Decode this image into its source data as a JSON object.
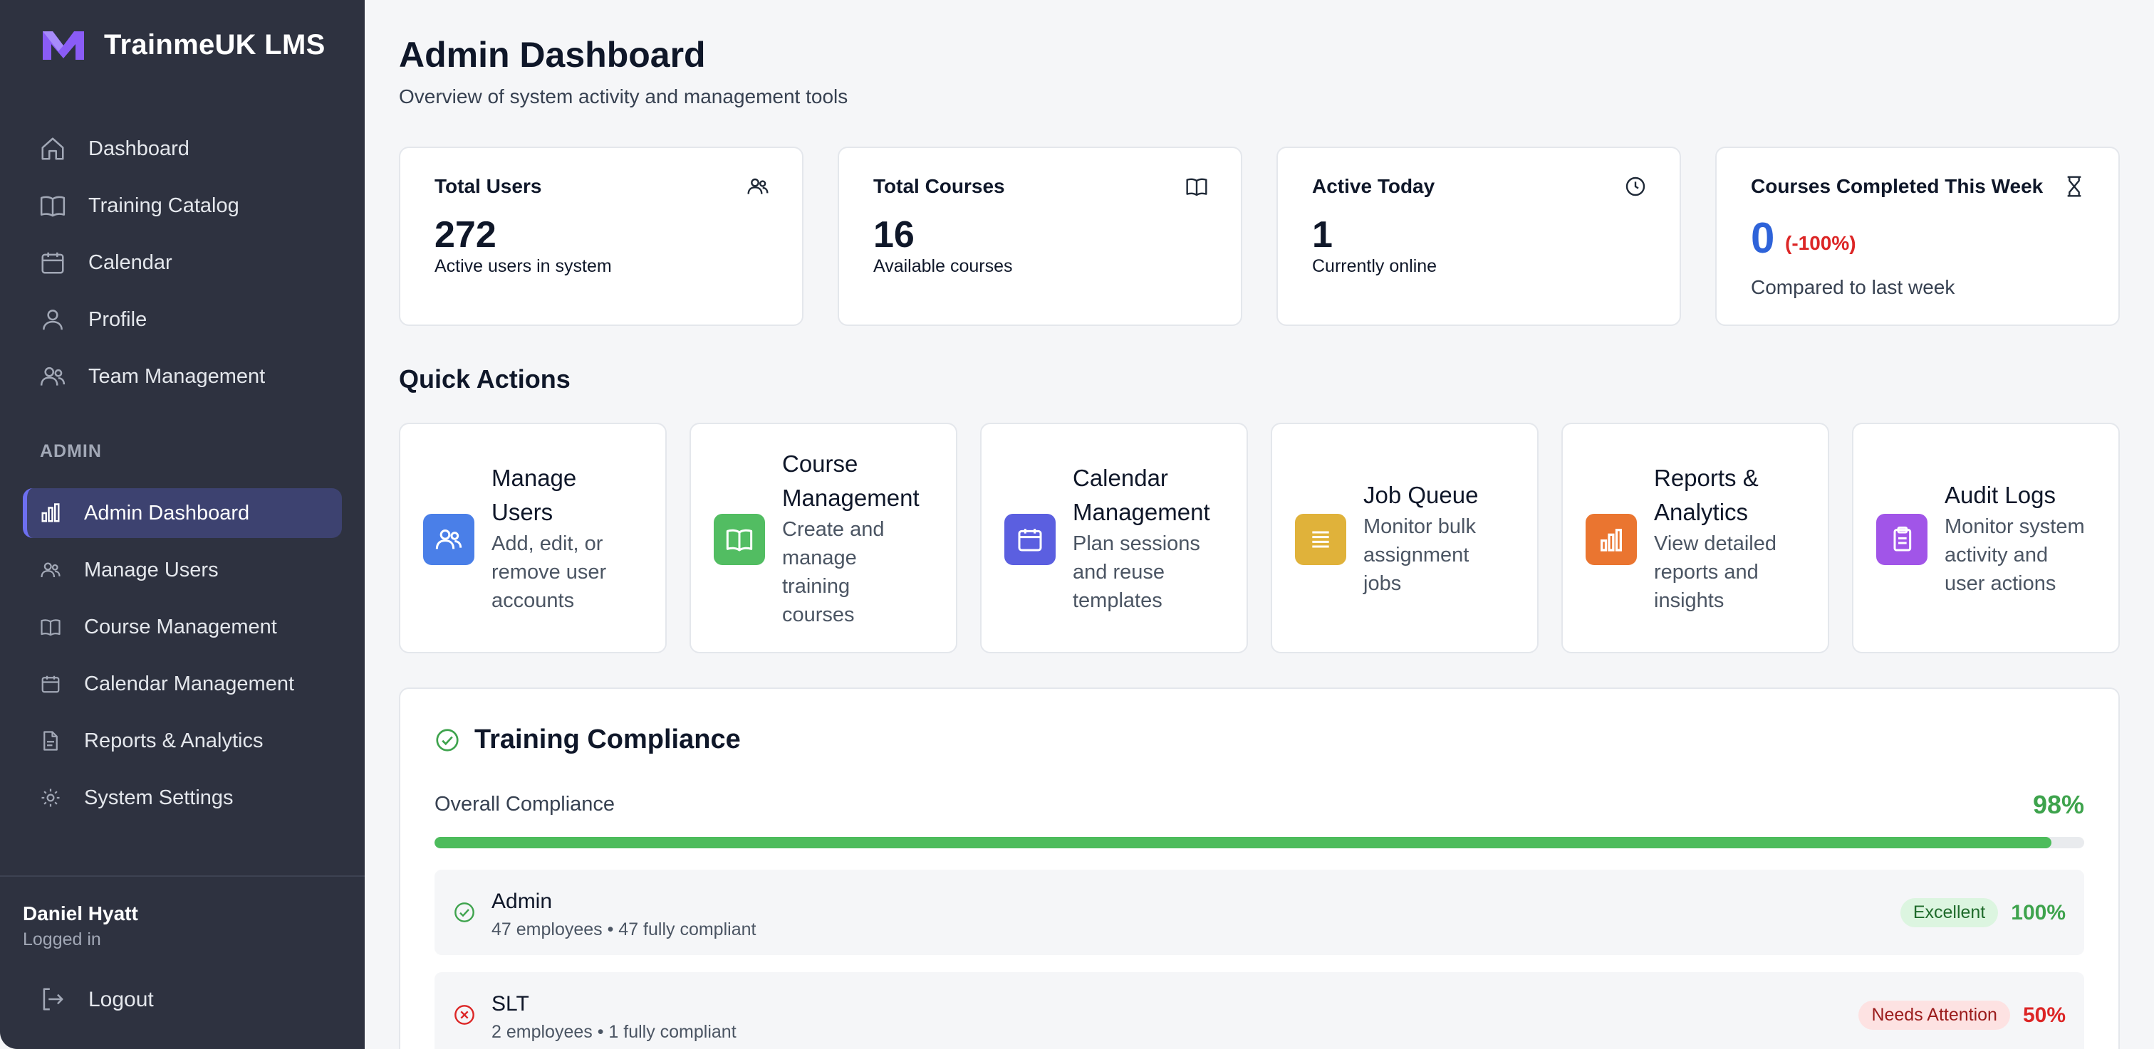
{
  "app": {
    "name": "TrainmeUK LMS",
    "logo_icon": "m-logo-icon",
    "accent": "#6d6ff0"
  },
  "sidebar": {
    "main_items": [
      {
        "label": "Dashboard",
        "icon": "home-icon"
      },
      {
        "label": "Training Catalog",
        "icon": "book-icon"
      },
      {
        "label": "Calendar",
        "icon": "calendar-icon"
      },
      {
        "label": "Profile",
        "icon": "user-icon"
      },
      {
        "label": "Team Management",
        "icon": "users-icon"
      }
    ],
    "admin_label": "ADMIN",
    "admin_items": [
      {
        "label": "Admin Dashboard",
        "icon": "bar-chart-icon",
        "active": true
      },
      {
        "label": "Manage Users",
        "icon": "users-icon"
      },
      {
        "label": "Course Management",
        "icon": "book-icon"
      },
      {
        "label": "Calendar Management",
        "icon": "calendar-icon"
      },
      {
        "label": "Reports & Analytics",
        "icon": "file-icon"
      },
      {
        "label": "System Settings",
        "icon": "gear-icon"
      }
    ],
    "user": {
      "name": "Daniel Hyatt",
      "status": "Logged in"
    },
    "logout_label": "Logout"
  },
  "header": {
    "title": "Admin Dashboard",
    "subtitle": "Overview of system activity and management tools"
  },
  "stats": [
    {
      "title": "Total Users",
      "value": "272",
      "desc": "Active users in system",
      "icon": "users-icon"
    },
    {
      "title": "Total Courses",
      "value": "16",
      "desc": "Available courses",
      "icon": "book-icon"
    },
    {
      "title": "Active Today",
      "value": "1",
      "desc": "Currently online",
      "icon": "clock-icon"
    },
    {
      "title": "Courses Completed This Week",
      "value": "0",
      "change": "(-100%)",
      "desc": "Compared to last week",
      "icon": "hourglass-icon"
    }
  ],
  "quick_actions": {
    "title": "Quick Actions",
    "items": [
      {
        "title_lines": [
          "Manage",
          "Users"
        ],
        "desc_lines": [
          "Add, edit, or",
          "remove user",
          "accounts"
        ],
        "color": "#4a7fe8",
        "icon": "users-icon"
      },
      {
        "title_lines": [
          "Course",
          "Management"
        ],
        "desc_lines": [
          "Create and",
          "manage",
          "training",
          "courses"
        ],
        "color": "#52bd62",
        "icon": "book-icon"
      },
      {
        "title_lines": [
          "Calendar",
          "Management"
        ],
        "desc_lines": [
          "Plan sessions",
          "and reuse",
          "templates"
        ],
        "color": "#5b5fe0",
        "icon": "calendar-icon"
      },
      {
        "title_lines": [
          "Job Queue"
        ],
        "desc_lines": [
          "Monitor bulk",
          "assignment",
          "jobs"
        ],
        "color": "#e0b23a",
        "icon": "list-icon"
      },
      {
        "title_lines": [
          "Reports &",
          "Analytics"
        ],
        "desc_lines": [
          "View detailed",
          "reports and",
          "insights"
        ],
        "color": "#ea7530",
        "icon": "bar-chart-icon"
      },
      {
        "title_lines": [
          "Audit Logs"
        ],
        "desc_lines": [
          "Monitor system",
          "activity and",
          "user actions"
        ],
        "color": "#a155e8",
        "icon": "clipboard-icon"
      }
    ]
  },
  "compliance": {
    "title": "Training Compliance",
    "overall_label": "Overall Compliance",
    "overall_pct": "98%",
    "overall_value": 98,
    "departments": [
      {
        "name": "Admin",
        "meta": "47 employees • 47 fully compliant",
        "badge": "Excellent",
        "pct": "100%",
        "status": "good"
      },
      {
        "name": "SLT",
        "meta": "2 employees • 1 fully compliant",
        "badge": "Needs Attention",
        "pct": "50%",
        "status": "bad"
      }
    ]
  }
}
